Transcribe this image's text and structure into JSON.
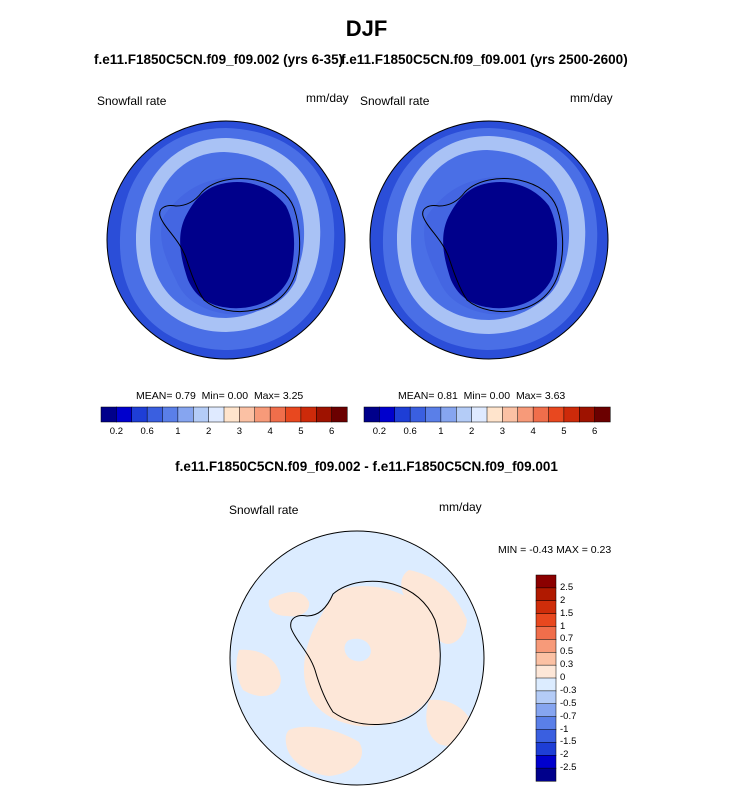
{
  "title": "DJF",
  "panel_left": {
    "case_title": "f.e11.F1850C5CN.f09_f09.002 (yrs 6-35)",
    "variable": "Snowfall rate",
    "units": "mm/day",
    "stats": {
      "mean_label": "MEAN=",
      "mean": "0.79",
      "min_label": "Min=",
      "min": "0.00",
      "max_label": "Max=",
      "max": "3.25"
    }
  },
  "panel_right": {
    "case_title": "f.e11.F1850C5CN.f09_f09.001 (yrs 2500-2600)",
    "variable": "Snowfall rate",
    "units": "mm/day",
    "stats": {
      "mean_label": "MEAN=",
      "mean": "0.81",
      "min_label": "Min=",
      "min": "0.00",
      "max_label": "Max=",
      "max": "3.63"
    }
  },
  "panel_diff": {
    "case_title": "f.e11.F1850C5CN.f09_f09.002 - f.e11.F1850C5CN.f09_f09.001",
    "variable": "Snowfall rate",
    "units": "mm/day",
    "minmax": "MIN =  -0.43 MAX =   0.23"
  },
  "colorbar_abs": {
    "tick_labels": [
      "0.2",
      "0.6",
      "1",
      "2",
      "3",
      "4",
      "5",
      "6"
    ],
    "colors": [
      "#00008b",
      "#0000cd",
      "#1e3ed6",
      "#3a5fe0",
      "#5a7fe8",
      "#86a5f0",
      "#b4ccf7",
      "#dfeaff",
      "#ffe4cc",
      "#fbc1a4",
      "#f79a79",
      "#f06e4b",
      "#e8481f",
      "#cd2a0a",
      "#9e1200",
      "#6b0000"
    ]
  },
  "colorbar_diff": {
    "tick_labels": [
      "2.5",
      "2",
      "1.5",
      "1",
      "0.7",
      "0.5",
      "0.3",
      "0",
      "-0.3",
      "-0.5",
      "-0.7",
      "-1",
      "-1.5",
      "-2",
      "-2.5"
    ],
    "colors": [
      "#8b0000",
      "#b01900",
      "#cf2d0a",
      "#e8481f",
      "#f06e4b",
      "#f79a79",
      "#fbc1a4",
      "#fde7d8",
      "#dcecff",
      "#b4ccf7",
      "#86a5f0",
      "#5a7fe8",
      "#3a5fe0",
      "#1e3ed6",
      "#0000cd",
      "#00008b"
    ]
  },
  "map_colors": {
    "ocean_far": "#2b4ed8",
    "ocean_mid": "#4a6fe6",
    "ocean_band": "#a9c2f5",
    "coast": "#4466e2",
    "interior": "#00008b",
    "diff_neg": "#dcecff",
    "diff_pos": "#fde7d8"
  }
}
